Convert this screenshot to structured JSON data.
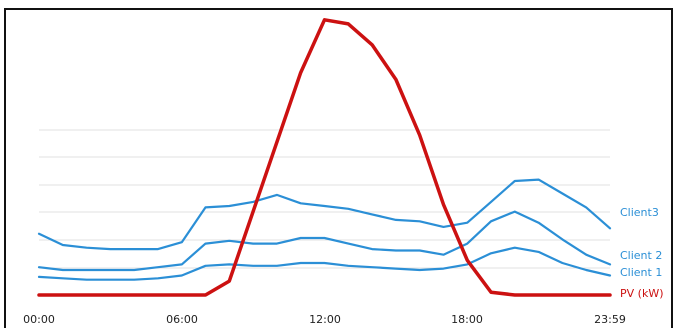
{
  "chart_data": {
    "type": "line",
    "title": "",
    "xlabel": "",
    "ylabel": "",
    "x": [
      "00:00",
      "01:00",
      "02:00",
      "03:00",
      "04:00",
      "05:00",
      "06:00",
      "07:00",
      "08:00",
      "09:00",
      "10:00",
      "11:00",
      "12:00",
      "13:00",
      "14:00",
      "15:00",
      "16:00",
      "17:00",
      "18:00",
      "19:00",
      "20:00",
      "21:00",
      "22:00",
      "23:00",
      "23:59"
    ],
    "x_ticks": [
      "00:00",
      "06:00",
      "12:00",
      "18:00",
      "23:59"
    ],
    "grid": "horizontal",
    "legend_position": "right-inline",
    "series": [
      {
        "name": "Client3",
        "color": "#2b8fd6",
        "values": [
          0.44,
          0.36,
          0.34,
          0.33,
          0.33,
          0.33,
          0.38,
          0.63,
          0.64,
          0.67,
          0.72,
          0.66,
          0.64,
          0.62,
          0.58,
          0.54,
          0.53,
          0.49,
          0.52,
          0.67,
          0.82,
          0.83,
          0.73,
          0.63,
          0.48
        ]
      },
      {
        "name": "Client 2",
        "color": "#2b8fd6",
        "values": [
          0.2,
          0.18,
          0.18,
          0.18,
          0.18,
          0.2,
          0.22,
          0.37,
          0.39,
          0.37,
          0.37,
          0.41,
          0.41,
          0.37,
          0.33,
          0.32,
          0.32,
          0.29,
          0.37,
          0.53,
          0.6,
          0.52,
          0.4,
          0.29,
          0.22
        ]
      },
      {
        "name": "Client 1",
        "color": "#2b8fd6",
        "values": [
          0.13,
          0.12,
          0.11,
          0.11,
          0.11,
          0.12,
          0.14,
          0.21,
          0.22,
          0.21,
          0.21,
          0.23,
          0.23,
          0.21,
          0.2,
          0.19,
          0.18,
          0.19,
          0.22,
          0.3,
          0.34,
          0.31,
          0.23,
          0.18,
          0.14
        ]
      },
      {
        "name": "PV (kW)",
        "color": "#cc1111",
        "values": [
          0,
          0,
          0,
          0,
          0,
          0,
          0,
          0,
          0.1,
          0.6,
          1.1,
          1.6,
          1.98,
          1.95,
          1.8,
          1.55,
          1.15,
          0.65,
          0.25,
          0.02,
          0,
          0,
          0,
          0,
          0
        ]
      }
    ]
  }
}
